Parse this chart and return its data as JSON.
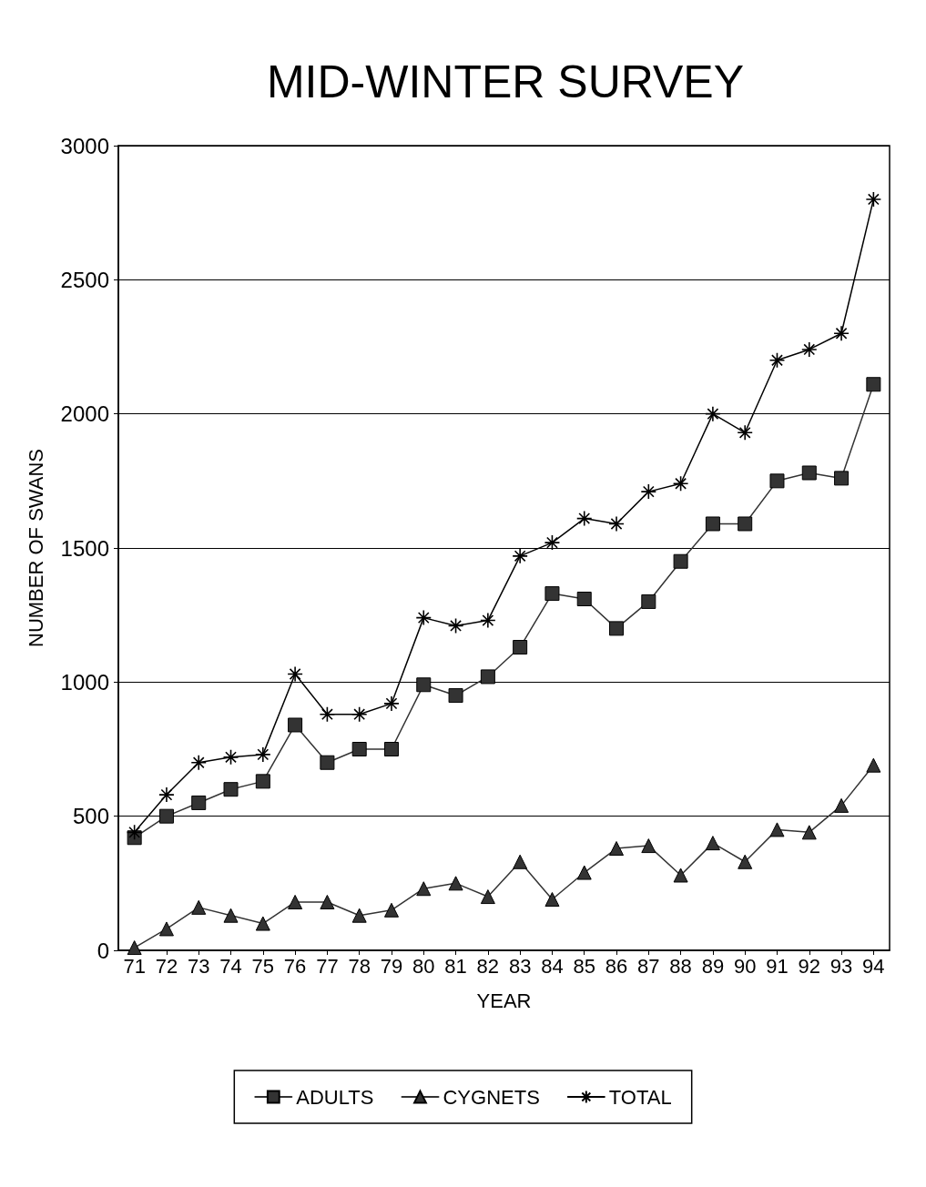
{
  "chart_data": {
    "type": "line",
    "title": "MID-WINTER SURVEY",
    "xlabel": "YEAR",
    "ylabel": "NUMBER OF SWANS",
    "categories": [
      "71",
      "72",
      "73",
      "74",
      "75",
      "76",
      "77",
      "78",
      "79",
      "80",
      "81",
      "82",
      "83",
      "84",
      "85",
      "86",
      "87",
      "88",
      "89",
      "90",
      "91",
      "92",
      "93",
      "94"
    ],
    "series": [
      {
        "name": "ADULTS",
        "color": "#333333",
        "marker": "square",
        "values": [
          420,
          500,
          550,
          600,
          630,
          840,
          700,
          750,
          750,
          990,
          950,
          1020,
          1130,
          1330,
          1310,
          1200,
          1300,
          1450,
          1590,
          1590,
          1750,
          1780,
          1760,
          2110
        ]
      },
      {
        "name": "CYGNETS",
        "color": "#333333",
        "marker": "triangle",
        "values": [
          10,
          80,
          160,
          130,
          100,
          180,
          180,
          130,
          150,
          230,
          250,
          200,
          330,
          190,
          290,
          380,
          390,
          280,
          400,
          330,
          450,
          440,
          540,
          690
        ]
      },
      {
        "name": "TOTAL",
        "color": "#000000",
        "marker": "cross",
        "values": [
          440,
          580,
          700,
          720,
          730,
          1030,
          880,
          880,
          920,
          1240,
          1210,
          1230,
          1470,
          1520,
          1610,
          1590,
          1710,
          1740,
          2000,
          1930,
          2200,
          2240,
          2300,
          2800
        ]
      }
    ],
    "ylim": [
      0,
      3000
    ],
    "yticks": [
      0,
      500,
      1000,
      1500,
      2000,
      2500,
      3000
    ],
    "grid": "y",
    "legend": "bottom",
    "line_style": "solid"
  }
}
